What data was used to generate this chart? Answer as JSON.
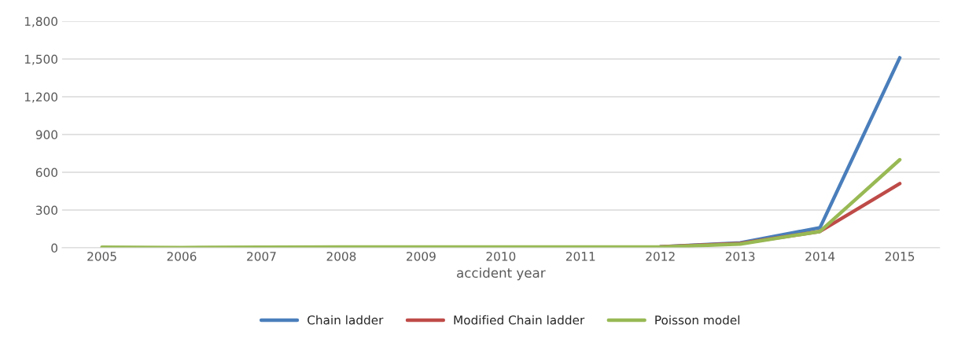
{
  "chart_data": {
    "type": "line",
    "xlabel": "accident year",
    "categories": [
      "2005",
      "2006",
      "2007",
      "2008",
      "2009",
      "2010",
      "2011",
      "2012",
      "2013",
      "2014",
      "2015"
    ],
    "series": [
      {
        "name": "Chain ladder",
        "color": "#4a7ebb",
        "values": [
          null,
          null,
          null,
          null,
          null,
          null,
          null,
          8,
          40,
          160,
          1510
        ]
      },
      {
        "name": "Modified Chain ladder",
        "color": "#be4b48",
        "values": [
          null,
          null,
          null,
          null,
          null,
          null,
          null,
          8,
          35,
          130,
          510
        ]
      },
      {
        "name": "Poisson model",
        "color": "#98b954",
        "values": [
          5,
          2,
          5,
          6,
          6,
          6,
          6,
          6,
          30,
          130,
          700
        ]
      }
    ],
    "ylim": [
      0,
      1800
    ],
    "yticks": [
      {
        "value": 0,
        "label": "0"
      },
      {
        "value": 300,
        "label": "300"
      },
      {
        "value": 600,
        "label": "600"
      },
      {
        "value": 900,
        "label": "900"
      },
      {
        "value": 1200,
        "label": "1,200"
      },
      {
        "value": 1500,
        "label": "1,500"
      },
      {
        "value": 1800,
        "label": "1,800"
      }
    ],
    "grid": "y",
    "legend": "bottom",
    "marker": "none",
    "line_style": "solid"
  }
}
